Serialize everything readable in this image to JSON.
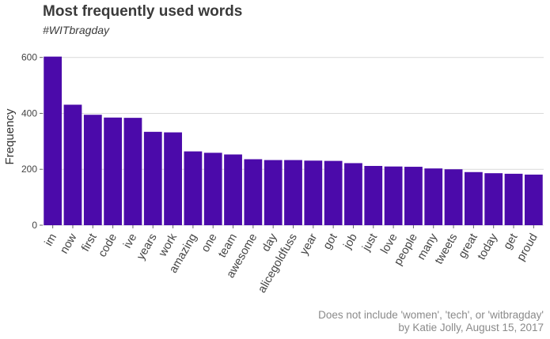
{
  "chart_data": {
    "type": "bar",
    "title": "Most frequently used words",
    "subtitle": "#WITbragday",
    "xlabel": "",
    "ylabel": "Frequency",
    "categories": [
      "im",
      "now",
      "first",
      "code",
      "ive",
      "years",
      "work",
      "amazing",
      "one",
      "team",
      "awesome",
      "day",
      "alicegoldfuss",
      "year",
      "got",
      "job",
      "just",
      "love",
      "people",
      "many",
      "tweets",
      "great",
      "today",
      "get",
      "proud"
    ],
    "values": [
      603,
      431,
      395,
      385,
      384,
      334,
      332,
      264,
      259,
      253,
      236,
      233,
      233,
      231,
      230,
      222,
      212,
      210,
      209,
      203,
      200,
      190,
      186,
      184,
      181
    ],
    "ylim": [
      0,
      650
    ],
    "yticks": [
      0,
      200,
      400,
      600
    ],
    "grid": true,
    "bar_color": "#4b0aaa",
    "legend": "none",
    "caption": [
      "Does not include 'women', 'tech', or 'witbragday'",
      "by Katie Jolly, August 15, 2017"
    ]
  }
}
